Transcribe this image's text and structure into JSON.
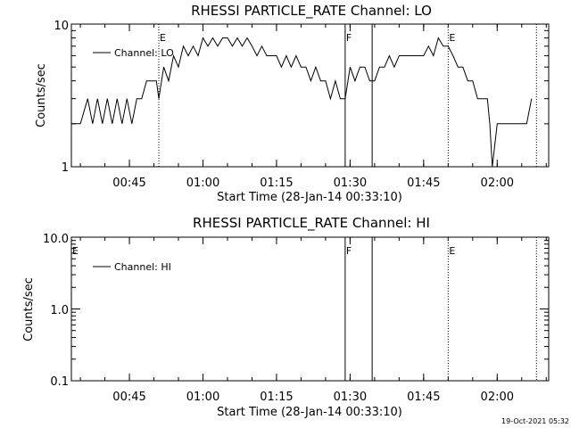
{
  "chart_data": [
    {
      "type": "line",
      "title": "RHESSI PARTICLE_RATE Channel: LO",
      "xlabel": "Start Time (28-Jan-14 00:33:10)",
      "ylabel": "Counts/sec",
      "yscale": "log",
      "ylim": [
        1,
        10
      ],
      "ytick_labels": [
        "1",
        "10"
      ],
      "xlim": [
        "00:33:10",
        "02:10:30"
      ],
      "xtick_labels": [
        "00:45",
        "01:00",
        "01:15",
        "01:30",
        "01:45",
        "02:00"
      ],
      "legend": {
        "placement": "top-left",
        "entries": [
          "Channel: LO"
        ]
      },
      "grid": false,
      "series": [
        {
          "name": "Channel: LO",
          "x": [
            "00:33:10",
            "00:35:00",
            "00:36:30",
            "00:37:30",
            "00:38:30",
            "00:39:30",
            "00:40:30",
            "00:41:30",
            "00:42:30",
            "00:43:30",
            "00:44:30",
            "00:45:30",
            "00:46:30",
            "00:47:30",
            "00:48:30",
            "00:49:30",
            "00:50:30",
            "00:51:00",
            "00:52:00",
            "00:53:00",
            "00:54:00",
            "00:55:00",
            "00:56:00",
            "00:57:00",
            "00:58:00",
            "00:59:00",
            "01:00:00",
            "01:01:00",
            "01:02:00",
            "01:03:00",
            "01:04:00",
            "01:05:00",
            "01:06:00",
            "01:07:00",
            "01:08:00",
            "01:09:00",
            "01:10:00",
            "01:11:00",
            "01:12:00",
            "01:13:00",
            "01:14:00",
            "01:15:00",
            "01:16:00",
            "01:17:00",
            "01:18:00",
            "01:19:00",
            "01:20:00",
            "01:21:00",
            "01:22:00",
            "01:23:00",
            "01:24:00",
            "01:25:00",
            "01:26:00",
            "01:27:00",
            "01:28:00",
            "01:29:00",
            "01:30:00",
            "01:31:00",
            "01:32:00",
            "01:33:00",
            "01:34:00",
            "01:35:00",
            "01:36:00",
            "01:37:00",
            "01:38:00",
            "01:39:00",
            "01:40:00",
            "01:41:00",
            "01:42:00",
            "01:43:00",
            "01:44:00",
            "01:45:00",
            "01:46:00",
            "01:47:00",
            "01:48:00",
            "01:49:00",
            "01:50:00",
            "01:51:00",
            "01:52:00",
            "01:53:00",
            "01:54:00",
            "01:55:00",
            "01:56:00",
            "01:57:00",
            "01:58:00",
            "01:58:30",
            "01:59:00",
            "02:00:00",
            "02:01:00",
            "02:02:00",
            "02:03:00",
            "02:04:00",
            "02:05:00",
            "02:06:00",
            "02:07:00"
          ],
          "y": [
            2,
            2,
            3,
            2,
            3,
            2,
            3,
            2,
            3,
            2,
            3,
            2,
            3,
            3,
            4,
            4,
            4,
            3,
            5,
            4,
            6,
            5,
            7,
            6,
            7,
            6,
            8,
            7,
            8,
            7,
            8,
            8,
            7,
            8,
            7,
            8,
            7,
            6,
            7,
            6,
            6,
            6,
            5,
            6,
            5,
            6,
            5,
            5,
            4,
            5,
            4,
            4,
            3,
            4,
            3,
            3,
            5,
            4,
            5,
            5,
            4,
            4,
            5,
            5,
            6,
            5,
            6,
            6,
            6,
            6,
            6,
            6,
            7,
            6,
            8,
            7,
            7,
            6,
            5,
            5,
            4,
            4,
            3,
            3,
            3,
            2,
            1,
            2,
            2,
            2,
            2,
            2,
            2,
            2,
            3
          ]
        }
      ],
      "flare_markers": [
        {
          "label": "E",
          "time": "00:51:00"
        },
        {
          "label": "F",
          "time": "01:29:00"
        },
        {
          "label": "E",
          "time": "01:50:00"
        }
      ]
    },
    {
      "type": "line",
      "title": "RHESSI PARTICLE_RATE Channel: HI",
      "xlabel": "Start Time (28-Jan-14 00:33:10)",
      "ylabel": "Counts/sec",
      "yscale": "log",
      "ylim": [
        0.1,
        10
      ],
      "ytick_labels": [
        "0.1",
        "1.0",
        "10.0"
      ],
      "xlim": [
        "00:33:10",
        "02:10:30"
      ],
      "xtick_labels": [
        "00:45",
        "01:00",
        "01:15",
        "01:30",
        "01:45",
        "02:00"
      ],
      "legend": {
        "placement": "top-left",
        "entries": [
          "Channel: HI"
        ]
      },
      "grid": false,
      "series": [
        {
          "name": "Channel: HI",
          "x": [],
          "y": []
        }
      ],
      "flare_markers": [
        {
          "label": "E",
          "time": "00:33:10"
        },
        {
          "label": "F",
          "time": "01:29:00"
        },
        {
          "label": "E",
          "time": "01:50:00"
        }
      ]
    }
  ],
  "footer": {
    "timestamp": "19-Oct-2021 05:32"
  }
}
